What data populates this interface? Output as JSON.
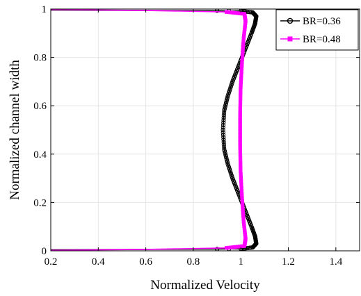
{
  "chart_data": {
    "type": "line",
    "xlabel": "Normalized Velocity",
    "ylabel": "Normalized channel width",
    "xlim": [
      0.2,
      1.5
    ],
    "ylim": [
      0,
      1
    ],
    "xticks": [
      "0.2",
      "0.4",
      "0.6",
      "0.8",
      "1",
      "1.2",
      "1.4"
    ],
    "xtick_values": [
      0.2,
      0.4,
      0.6,
      0.8,
      1.0,
      1.2,
      1.4
    ],
    "yticks": [
      "0",
      "0.2",
      "0.4",
      "0.6",
      "0.8",
      "1"
    ],
    "ytick_values": [
      0,
      0.2,
      0.4,
      0.6,
      0.8,
      1.0
    ],
    "grid": true,
    "legend_position": "top-right",
    "series": [
      {
        "name": "BR=0.36",
        "color": "#000000",
        "marker": "circle",
        "x": [
          0.2,
          0.6,
          1.0,
          1.05,
          1.065,
          1.06,
          1.045,
          1.025,
          1.005,
          0.985,
          0.965,
          0.945,
          0.93,
          0.925,
          0.93,
          0.945,
          0.965,
          0.985,
          1.005,
          1.025,
          1.045,
          1.06,
          1.065,
          1.05,
          1.0,
          0.6,
          0.2
        ],
        "y": [
          0.004,
          0.006,
          0.008,
          0.014,
          0.03,
          0.06,
          0.1,
          0.15,
          0.2,
          0.25,
          0.3,
          0.36,
          0.42,
          0.5,
          0.58,
          0.64,
          0.7,
          0.75,
          0.8,
          0.85,
          0.9,
          0.94,
          0.97,
          0.986,
          0.992,
          0.994,
          0.996
        ]
      },
      {
        "name": "BR=0.48",
        "color": "#ff00ff",
        "marker": "square",
        "x": [
          0.2,
          0.6,
          0.94,
          1.015,
          1.02,
          1.012,
          1.005,
          0.999,
          0.997,
          0.997,
          0.999,
          1.005,
          1.012,
          1.02,
          1.015,
          0.94,
          0.6,
          0.2
        ],
        "y": [
          0.002,
          0.006,
          0.012,
          0.02,
          0.05,
          0.12,
          0.22,
          0.33,
          0.44,
          0.56,
          0.67,
          0.78,
          0.88,
          0.95,
          0.98,
          0.988,
          0.994,
          0.998
        ]
      }
    ]
  }
}
